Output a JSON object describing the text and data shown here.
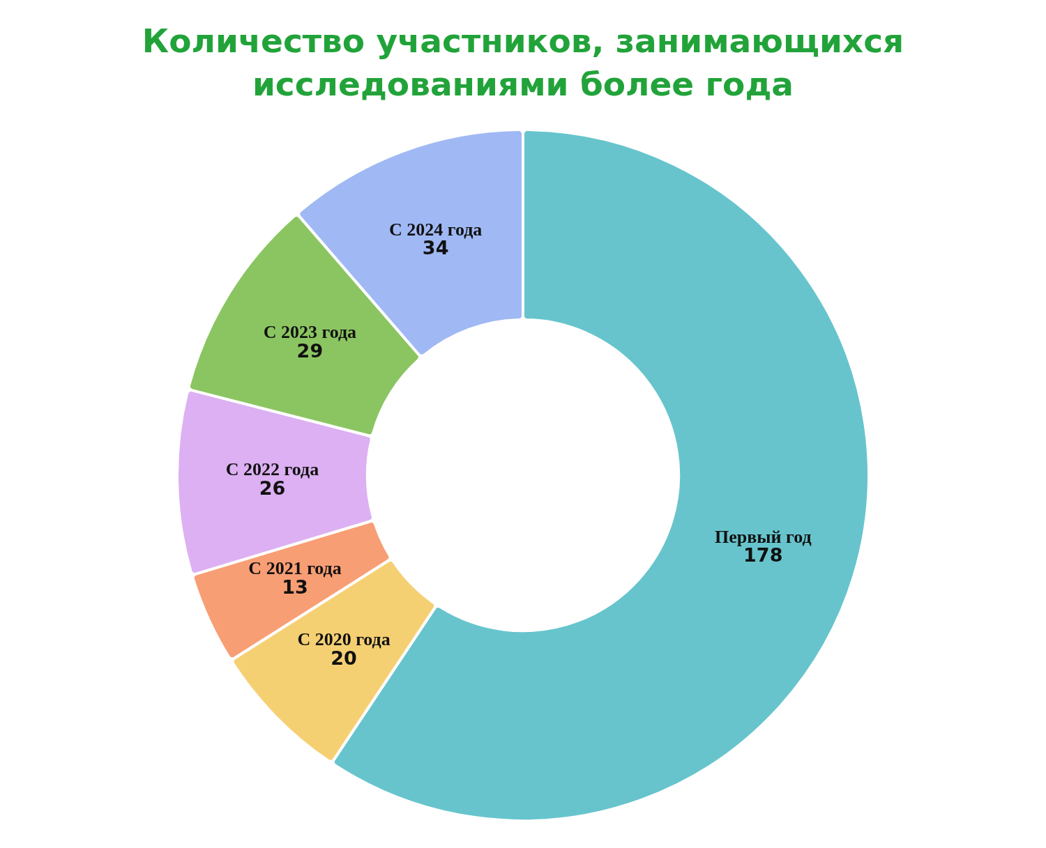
{
  "chart_data": {
    "type": "donut",
    "title": "Количество участников, занимающихся исследованиями более года",
    "categories": [
      "Первый год",
      "С 2020 года",
      "С 2021 года",
      "С 2022 года",
      "С 2023 года",
      "С 2024 года"
    ],
    "values": [
      178,
      20,
      13,
      26,
      29,
      34
    ],
    "colors": [
      "#67c4cc",
      "#f5d073",
      "#f89e74",
      "#dcb0f2",
      "#8bc561",
      "#a0b9f4"
    ],
    "data_labels": true,
    "legend": false
  }
}
